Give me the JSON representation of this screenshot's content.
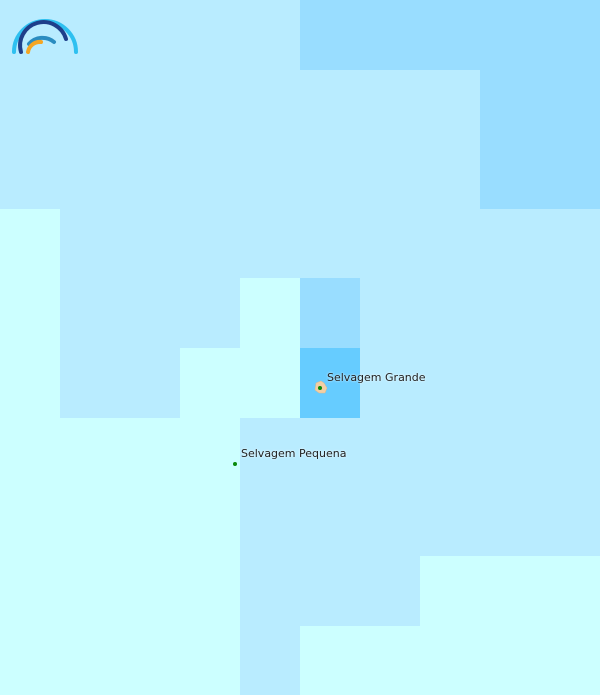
{
  "map": {
    "colors": {
      "base": "#b9ecff",
      "deep": "#99ddff",
      "shallow": "#ccffff",
      "highlight": "#66ccff",
      "island": "#f2cfa4",
      "point": "#0a8a0a"
    },
    "places": [
      {
        "name": "Selvagem Grande",
        "type": "island"
      },
      {
        "name": "Selvagem Pequena",
        "type": "islet"
      }
    ]
  },
  "logo": {
    "icon": "rainbow-arc-logo"
  }
}
